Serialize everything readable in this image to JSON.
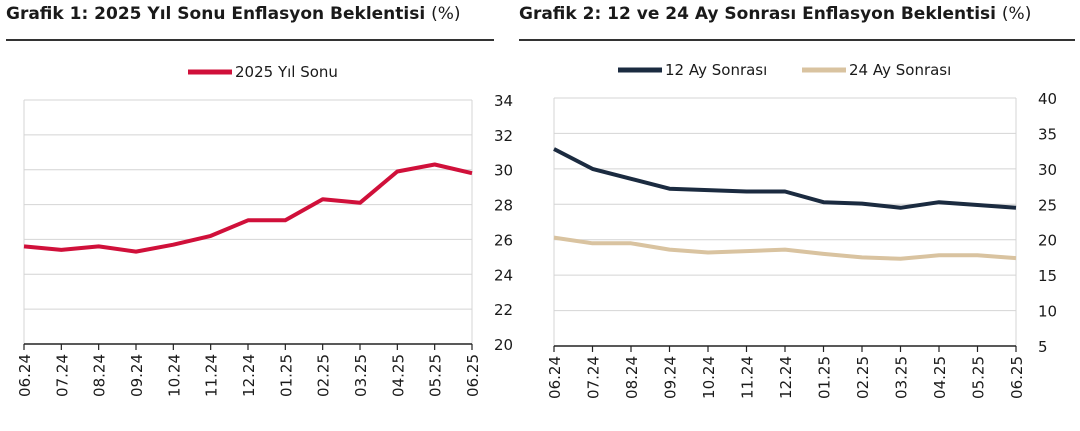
{
  "chart_data": [
    {
      "type": "line",
      "title": "Grafik 1: 2025 Yıl Sonu Enflasyon Beklentisi",
      "unit": "(%)",
      "categories": [
        "06.24",
        "07.24",
        "08.24",
        "09.24",
        "10.24",
        "11.24",
        "12.24",
        "01.25",
        "02.25",
        "03.25",
        "04.25",
        "05.25",
        "06.25"
      ],
      "series": [
        {
          "name": "2025 Yıl Sonu",
          "color": "#d0103a",
          "values": [
            25.6,
            25.4,
            25.6,
            25.3,
            25.7,
            26.2,
            27.1,
            27.1,
            28.3,
            28.1,
            29.9,
            30.3,
            29.8
          ]
        }
      ],
      "y_axis": {
        "position": "right",
        "min": 20,
        "max": 34,
        "step": 2,
        "ticks": [
          "20",
          "22",
          "24",
          "26",
          "28",
          "30",
          "32",
          "34"
        ]
      },
      "legend": "top-center",
      "grid": true
    },
    {
      "type": "line",
      "title": "Grafik 2: 12 ve 24 Ay Sonrası Enflasyon Beklentisi",
      "unit": "(%)",
      "categories": [
        "06.24",
        "07.24",
        "08.24",
        "09.24",
        "10.24",
        "11.24",
        "12.24",
        "01.25",
        "02.25",
        "03.25",
        "04.25",
        "05.25",
        "06.25"
      ],
      "series": [
        {
          "name": "12 Ay Sonrası",
          "color": "#1b2b40",
          "values": [
            32.8,
            30.0,
            28.6,
            27.2,
            27.0,
            26.8,
            26.8,
            25.3,
            25.1,
            24.5,
            25.3,
            24.9,
            24.5
          ]
        },
        {
          "name": "24 Ay Sonrası",
          "color": "#d9c3a0",
          "values": [
            20.3,
            19.5,
            19.5,
            18.6,
            18.2,
            18.4,
            18.6,
            18.0,
            17.5,
            17.3,
            17.8,
            17.8,
            17.4
          ]
        }
      ],
      "y_axis": {
        "position": "right",
        "min": 5,
        "max": 40,
        "step": 5,
        "ticks": [
          "5",
          "10",
          "15",
          "20",
          "25",
          "30",
          "35",
          "40"
        ]
      },
      "legend": "top-center",
      "grid": true
    }
  ]
}
